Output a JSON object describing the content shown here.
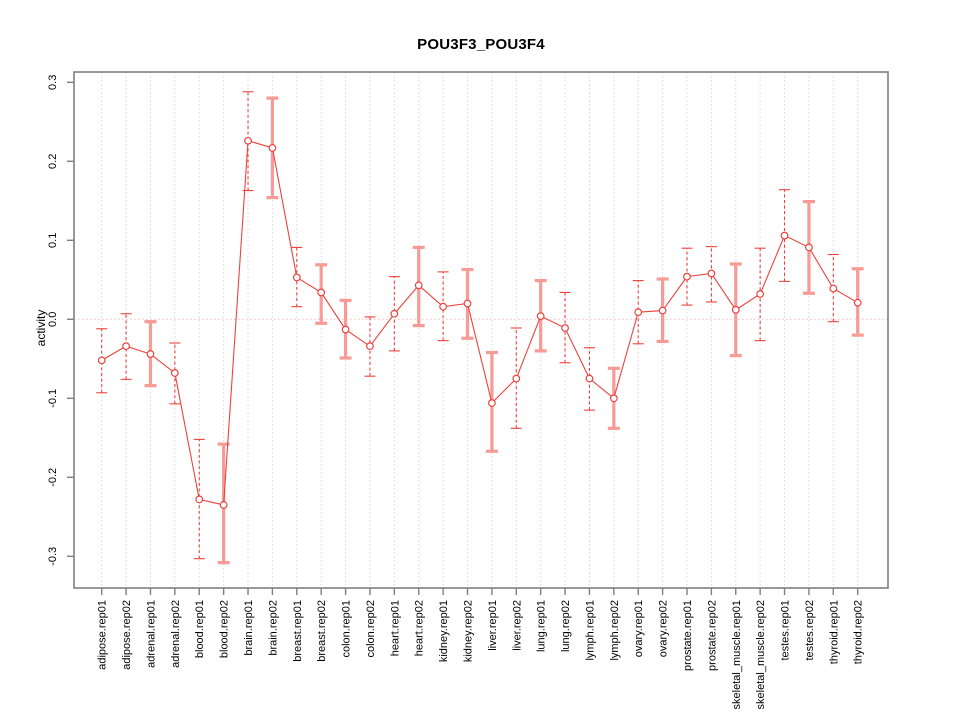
{
  "chart_data": {
    "type": "line",
    "title": "POU3F3_POU3F4",
    "xlabel": "",
    "ylabel": "activity",
    "ylim": [
      -0.34,
      0.315
    ],
    "ytick_labels": [
      "0.3",
      "0.2",
      "0.1",
      "0.0",
      "-0.1",
      "-0.2",
      "-0.3"
    ],
    "ytick_values": [
      0.3,
      0.2,
      0.1,
      0.0,
      -0.1,
      -0.2,
      -0.3
    ],
    "grid": "vertical dotted gridline at every category; dotted horizontal reference line at y=0",
    "legend": "none",
    "marker": "open-circle",
    "error_bars": true,
    "points": [
      {
        "category": "adipose.rep01",
        "value": -0.052,
        "lo": -0.093,
        "hi": -0.012,
        "bar": "dash"
      },
      {
        "category": "adipose.rep02",
        "value": -0.034,
        "lo": -0.076,
        "hi": 0.007,
        "bar": "dash"
      },
      {
        "category": "adrenal.rep01",
        "value": -0.044,
        "lo": -0.084,
        "hi": -0.003,
        "bar": "wide"
      },
      {
        "category": "adrenal.rep02",
        "value": -0.068,
        "lo": -0.107,
        "hi": -0.03,
        "bar": "dash"
      },
      {
        "category": "blood.rep01",
        "value": -0.228,
        "lo": -0.303,
        "hi": -0.152,
        "bar": "dash"
      },
      {
        "category": "blood.rep02",
        "value": -0.235,
        "lo": -0.308,
        "hi": -0.158,
        "bar": "wide"
      },
      {
        "category": "brain.rep01",
        "value": 0.226,
        "lo": 0.163,
        "hi": 0.288,
        "bar": "dash"
      },
      {
        "category": "brain.rep02",
        "value": 0.217,
        "lo": 0.154,
        "hi": 0.28,
        "bar": "wide"
      },
      {
        "category": "breast.rep01",
        "value": 0.053,
        "lo": 0.016,
        "hi": 0.091,
        "bar": "dash"
      },
      {
        "category": "breast.rep02",
        "value": 0.034,
        "lo": -0.005,
        "hi": 0.069,
        "bar": "wide"
      },
      {
        "category": "colon.rep01",
        "value": -0.013,
        "lo": -0.049,
        "hi": 0.024,
        "bar": "wide"
      },
      {
        "category": "colon.rep02",
        "value": -0.034,
        "lo": -0.072,
        "hi": 0.003,
        "bar": "dash"
      },
      {
        "category": "heart.rep01",
        "value": 0.007,
        "lo": -0.04,
        "hi": 0.054,
        "bar": "dash"
      },
      {
        "category": "heart.rep02",
        "value": 0.043,
        "lo": -0.008,
        "hi": 0.091,
        "bar": "wide"
      },
      {
        "category": "kidney.rep01",
        "value": 0.016,
        "lo": -0.027,
        "hi": 0.06,
        "bar": "dash"
      },
      {
        "category": "kidney.rep02",
        "value": 0.02,
        "lo": -0.024,
        "hi": 0.063,
        "bar": "wide"
      },
      {
        "category": "liver.rep01",
        "value": -0.106,
        "lo": -0.167,
        "hi": -0.042,
        "bar": "wide"
      },
      {
        "category": "liver.rep02",
        "value": -0.075,
        "lo": -0.138,
        "hi": -0.011,
        "bar": "dash"
      },
      {
        "category": "lung.rep01",
        "value": 0.004,
        "lo": -0.04,
        "hi": 0.049,
        "bar": "wide"
      },
      {
        "category": "lung.rep02",
        "value": -0.011,
        "lo": -0.055,
        "hi": 0.034,
        "bar": "dash"
      },
      {
        "category": "lymph.rep01",
        "value": -0.075,
        "lo": -0.115,
        "hi": -0.036,
        "bar": "dash"
      },
      {
        "category": "lymph.rep02",
        "value": -0.1,
        "lo": -0.138,
        "hi": -0.062,
        "bar": "wide"
      },
      {
        "category": "ovary.rep01",
        "value": 0.009,
        "lo": -0.031,
        "hi": 0.049,
        "bar": "dash"
      },
      {
        "category": "ovary.rep02",
        "value": 0.011,
        "lo": -0.028,
        "hi": 0.051,
        "bar": "wide"
      },
      {
        "category": "prostate.rep01",
        "value": 0.054,
        "lo": 0.018,
        "hi": 0.09,
        "bar": "dash"
      },
      {
        "category": "prostate.rep02",
        "value": 0.058,
        "lo": 0.022,
        "hi": 0.092,
        "bar": "dash"
      },
      {
        "category": "skeletal_muscle.rep01",
        "value": 0.012,
        "lo": -0.046,
        "hi": 0.07,
        "bar": "wide"
      },
      {
        "category": "skeletal_muscle.rep02",
        "value": 0.032,
        "lo": -0.027,
        "hi": 0.09,
        "bar": "dash"
      },
      {
        "category": "testes.rep01",
        "value": 0.106,
        "lo": 0.048,
        "hi": 0.164,
        "bar": "dash"
      },
      {
        "category": "testes.rep02",
        "value": 0.091,
        "lo": 0.033,
        "hi": 0.149,
        "bar": "wide"
      },
      {
        "category": "thyroid.rep01",
        "value": 0.039,
        "lo": -0.003,
        "hi": 0.082,
        "bar": "dash"
      },
      {
        "category": "thyroid.rep02",
        "value": 0.021,
        "lo": -0.02,
        "hi": 0.064,
        "bar": "wide"
      }
    ]
  },
  "colors": {
    "series": "#ee423d",
    "wide_bar": "#f89a95",
    "gridline": "#d8d8d8",
    "zero_line": "#f3bdba",
    "axis": "#7f7f7f",
    "text": "#000000",
    "background": "#ffffff"
  }
}
